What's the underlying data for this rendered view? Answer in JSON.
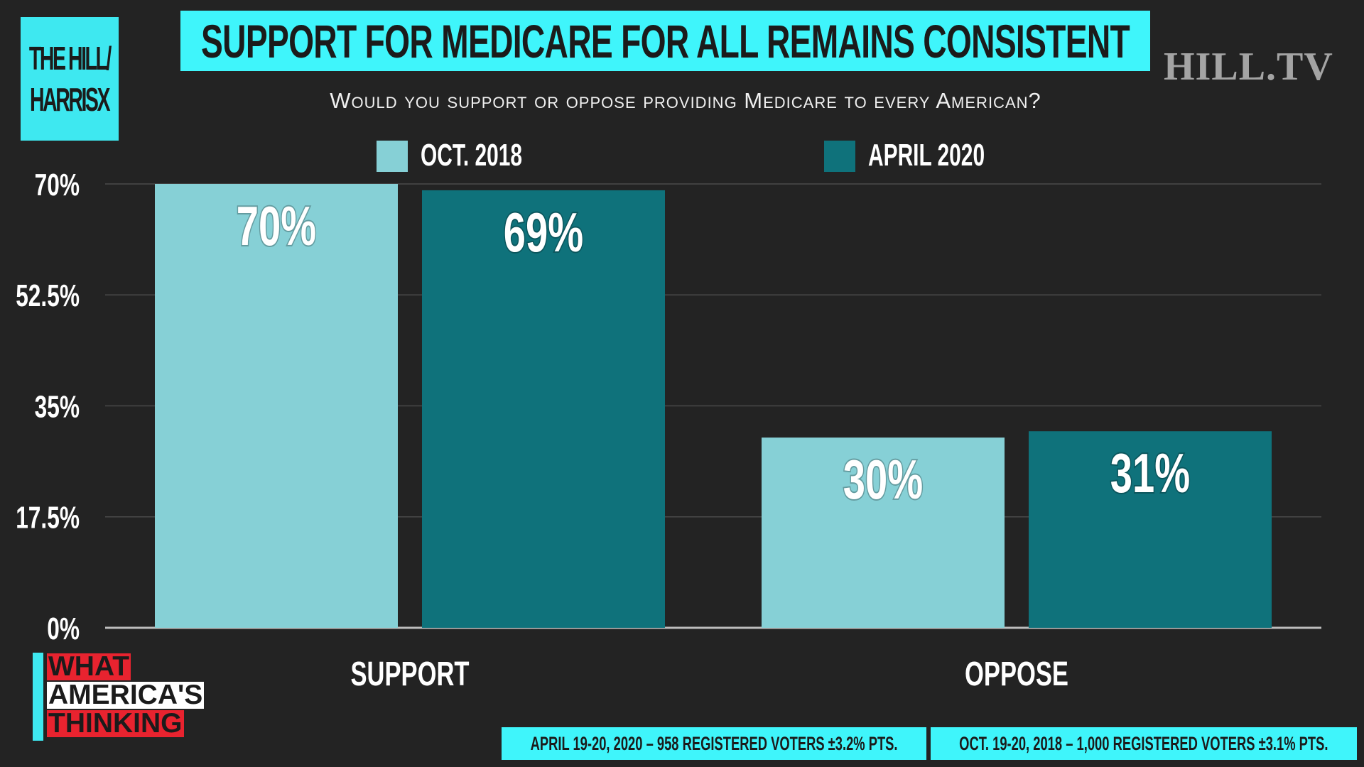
{
  "branding": {
    "logo_line1": "THE HILL/",
    "logo_line2": "HARRISX",
    "tv_logo": "HILL.TV",
    "what_word": "WHAT",
    "americas_word": "AMERICA'S",
    "thinking_word": "THINKING"
  },
  "colors": {
    "background": "#232323",
    "accent_cyan": "#3ff5fb",
    "series_oct_2018": "#86d0d6",
    "series_april_2020": "#0f727b",
    "brand_red": "#e8232f",
    "gridline": "#4a4a4a"
  },
  "chart_data": {
    "type": "bar",
    "title": "SUPPORT FOR MEDICARE FOR ALL REMAINS CONSISTENT",
    "subtitle": "Would you support or oppose providing Medicare to every American?",
    "categories": [
      "SUPPORT",
      "OPPOSE"
    ],
    "series": [
      {
        "name": "OCT. 2018",
        "values": [
          70,
          30
        ],
        "labels": [
          "70%",
          "30%"
        ]
      },
      {
        "name": "APRIL 2020",
        "values": [
          69,
          31
        ],
        "labels": [
          "69%",
          "31%"
        ]
      }
    ],
    "yticks": [
      "0%",
      "17.5%",
      "35%",
      "52.5%",
      "70%"
    ],
    "ytick_values": [
      0,
      17.5,
      35,
      52.5,
      70
    ],
    "ylim": [
      0,
      70
    ],
    "grid": true,
    "legend_position": "top"
  },
  "sources": {
    "april_2020": "APRIL 19-20, 2020 – 958 REGISTERED VOTERS ±3.2% PTS.",
    "oct_2018": "OCT. 19-20, 2018 – 1,000 REGISTERED VOTERS ±3.1% PTS."
  }
}
